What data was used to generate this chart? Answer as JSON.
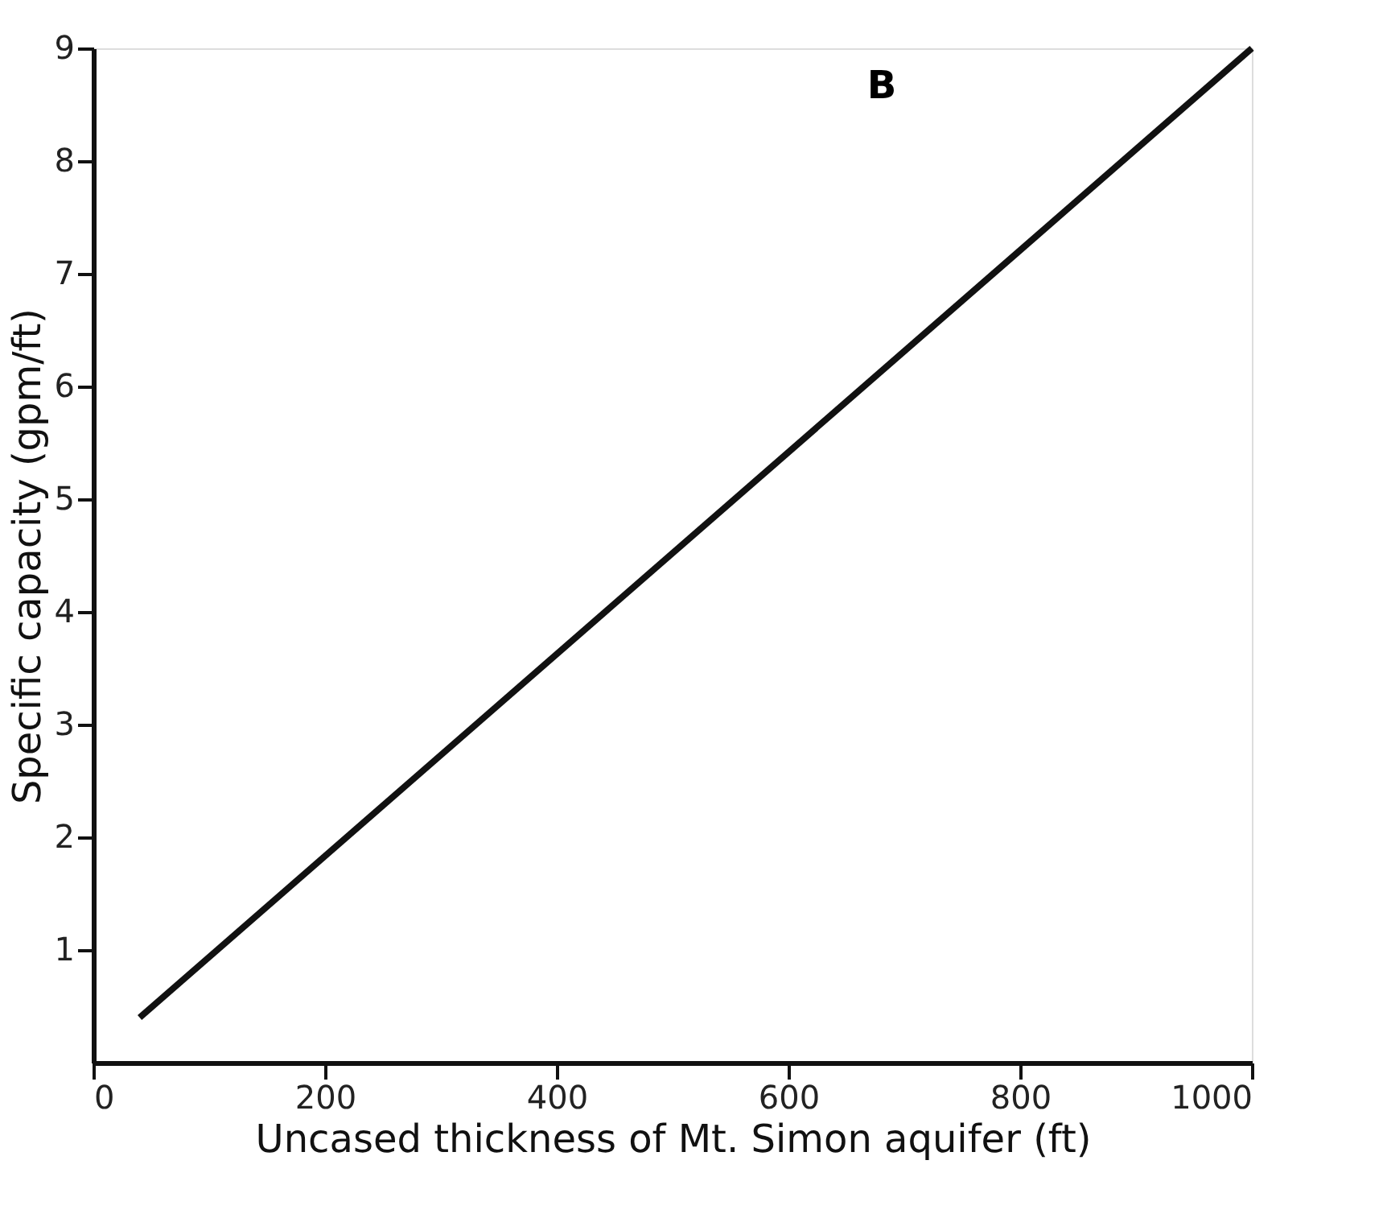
{
  "chart_data": {
    "type": "line",
    "xlabel": "Uncased thickness of Mt. Simon aquifer (ft)",
    "ylabel": "Specific capacity (gpm/ft)",
    "annotations": [
      "B"
    ],
    "x": [
      40,
      1000
    ],
    "series": [
      {
        "color": "#111111",
        "values": [
          0.4,
          9
        ]
      }
    ],
    "xlim": [
      0,
      1000
    ],
    "xticks": [
      0,
      200,
      400,
      600,
      800,
      1000
    ],
    "ylim": [
      0,
      9
    ],
    "yticks": [
      1,
      2,
      3,
      4,
      5,
      6,
      7,
      8,
      9
    ],
    "grid": false,
    "marker": "none",
    "line_style": "solid"
  }
}
